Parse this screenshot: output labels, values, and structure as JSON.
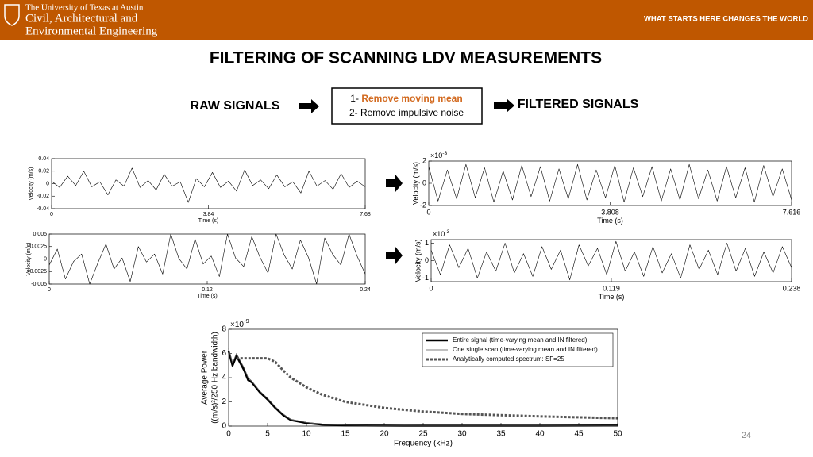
{
  "header": {
    "university": "The University of Texas at Austin",
    "department_line1": "Civil, Architectural and",
    "department_line2": "Environmental Engineering",
    "slogan": "WHAT STARTS HERE CHANGES THE WORLD"
  },
  "title": "FILTERING OF SCANNING LDV MEASUREMENTS",
  "flow": {
    "input": "RAW SIGNALS",
    "steps": [
      {
        "number": "1-",
        "text": "Remove moving mean"
      },
      {
        "number": "2-",
        "text": "Remove impulsive noise"
      }
    ],
    "output": "FILTERED SIGNALS"
  },
  "page_number": "24",
  "chart_data": [
    {
      "type": "line",
      "xlabel": "Time (s)",
      "ylabel": "Velocity (m/s)",
      "xlim": [
        0,
        7.68
      ],
      "xticks": [
        0,
        3.84,
        7.68
      ],
      "ylim": [
        -0.04,
        0.04
      ],
      "yticks": [
        -0.04,
        -0.02,
        0,
        0.02,
        0.04
      ],
      "color": "#000000",
      "values": [
        0.004,
        -0.006,
        0.012,
        -0.003,
        0.02,
        -0.005,
        0.003,
        -0.018,
        0.006,
        -0.004,
        0.025,
        -0.006,
        0.005,
        -0.01,
        0.015,
        -0.004,
        0.003,
        -0.03,
        0.008,
        -0.005,
        0.018,
        -0.006,
        0.004,
        -0.012,
        0.022,
        -0.003,
        0.006,
        -0.008,
        0.014,
        -0.005,
        0.003,
        -0.015,
        0.02,
        -0.004,
        0.005,
        -0.009,
        0.016,
        -0.006,
        0.004,
        -0.005
      ]
    },
    {
      "type": "line",
      "xlabel": "Time (s)",
      "ylabel": "Velocity (m/s)",
      "y_multiplier": "×10",
      "y_exponent": "-3",
      "xlim": [
        0,
        7.616
      ],
      "xticks": [
        0,
        3.808,
        7.616
      ],
      "ylim": [
        -2,
        2
      ],
      "yticks": [
        -2,
        0,
        2
      ],
      "color": "#000000",
      "values": [
        1.5,
        -1.6,
        1.2,
        -1.4,
        1.7,
        -1.3,
        1.4,
        -1.7,
        1.1,
        -1.5,
        1.6,
        -1.2,
        1.5,
        -1.6,
        1.3,
        -1.4,
        1.7,
        -1.5,
        1.2,
        -1.3,
        1.6,
        -1.7,
        1.4,
        -1.2,
        1.5,
        -1.6,
        1.3,
        -1.5,
        1.7,
        -1.4,
        1.2,
        -1.6,
        1.5,
        -1.3,
        1.4,
        -1.7,
        1.6,
        -1.2,
        1.3,
        -1.5
      ]
    },
    {
      "type": "line",
      "xlabel": "Time (s)",
      "ylabel": "Velocity (m/s)",
      "xlim": [
        0,
        0.24
      ],
      "xticks": [
        0,
        0.12,
        0.24
      ],
      "ylim": [
        -0.005,
        0.005
      ],
      "yticks": [
        -0.005,
        -0.0025,
        0,
        0.0025,
        0.005
      ],
      "color": "#000000",
      "values": [
        -0.0012,
        0.002,
        -0.004,
        -0.0005,
        0.001,
        -0.005,
        -0.0008,
        0.003,
        -0.002,
        0.0002,
        -0.0045,
        0.0025,
        -0.0006,
        0.001,
        -0.003,
        0.005,
        0.0001,
        -0.002,
        0.004,
        -0.001,
        0.0006,
        -0.0035,
        0.005,
        0.0002,
        -0.0015,
        0.0045,
        0.0004,
        -0.0028,
        0.005,
        0.0008,
        -0.002,
        0.0038,
        0.0003,
        -0.005,
        0.0042,
        0.0009,
        -0.0012,
        0.005,
        0.0006,
        -0.003
      ]
    },
    {
      "type": "line",
      "xlabel": "Time (s)",
      "ylabel": "Velocity (m/s)",
      "y_multiplier": "×10",
      "y_exponent": "-3",
      "xlim": [
        0,
        0.238
      ],
      "xticks": [
        0,
        0.119,
        0.238
      ],
      "ylim": [
        -1.2,
        1.2
      ],
      "yticks": [
        -1,
        0,
        1
      ],
      "color": "#000000",
      "values": [
        0.6,
        -0.8,
        0.9,
        -0.4,
        0.7,
        -1.0,
        0.5,
        -0.6,
        1.0,
        -0.7,
        0.4,
        -0.9,
        0.8,
        -0.5,
        0.6,
        -1.1,
        0.9,
        -0.3,
        0.7,
        -0.8,
        1.1,
        -0.6,
        0.5,
        -0.9,
        0.8,
        -0.7,
        0.4,
        -1.0,
        0.9,
        -0.5,
        0.6,
        -0.8,
        1.0,
        -0.6,
        0.7,
        -0.9,
        0.5,
        -0.7,
        0.8,
        -0.4
      ]
    },
    {
      "type": "line",
      "xlabel": "Frequency (kHz)",
      "ylabel_lines": [
        "Average Power",
        "((m/s)²/250 Hz bandwidth)"
      ],
      "y_multiplier": "×10",
      "y_exponent": "-9",
      "xlim": [
        0,
        50
      ],
      "xticks": [
        0,
        5,
        10,
        15,
        20,
        25,
        30,
        35,
        40,
        45,
        50
      ],
      "ylim": [
        0,
        8
      ],
      "yticks": [
        0,
        2,
        4,
        6,
        8
      ],
      "legend": "upper right",
      "x": [
        0,
        0.5,
        1,
        1.5,
        2,
        2.5,
        3,
        4,
        5,
        6,
        7,
        8,
        10,
        12,
        15,
        20,
        25,
        30,
        40,
        50
      ],
      "series": [
        {
          "name": "Entire signal (time-varying mean and IN filtered)",
          "color": "#000000",
          "line_width": 2.5,
          "line_style": "solid",
          "values": [
            6.2,
            5.0,
            5.8,
            5.2,
            4.6,
            3.8,
            3.6,
            2.8,
            2.2,
            1.5,
            0.9,
            0.5,
            0.25,
            0.12,
            0.06,
            0.04,
            0.03,
            0.03,
            0.03,
            0.05
          ]
        },
        {
          "name": "One single scan (time-varying mean and IN filtered)",
          "color": "#555555",
          "line_width": 0.8,
          "line_style": "solid",
          "values": [
            6.4,
            5.2,
            6.0,
            5.4,
            4.8,
            4.0,
            3.7,
            2.9,
            2.3,
            1.6,
            1.0,
            0.55,
            0.3,
            0.15,
            0.08,
            0.05,
            0.04,
            0.04,
            0.04,
            0.06
          ]
        },
        {
          "name": "Analytically computed spectrum: SF=25",
          "color": "#555555",
          "line_width": 3,
          "line_style": "dotted",
          "values": [
            null,
            null,
            5.6,
            5.6,
            5.6,
            5.6,
            5.6,
            5.6,
            5.6,
            5.3,
            4.6,
            4.0,
            3.2,
            2.6,
            2.0,
            1.5,
            1.2,
            1.0,
            0.8,
            0.65
          ]
        }
      ]
    }
  ]
}
